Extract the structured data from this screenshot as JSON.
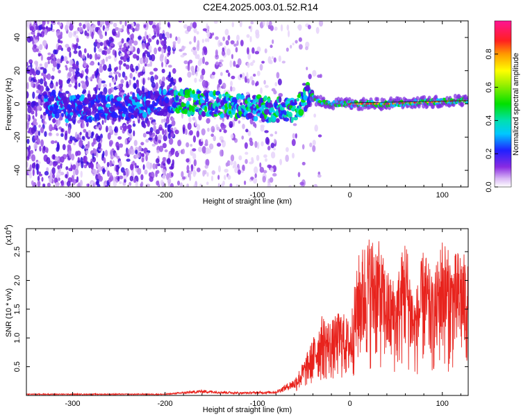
{
  "title": "C2E4.2025.003.01.52.R14",
  "colors": {
    "snr_line": "#e8231d",
    "frame": "#000000"
  },
  "chart_data": [
    {
      "type": "heatmap",
      "xlabel": "Height of straight line (km)",
      "ylabel": "Frequency (Hz)",
      "xlim": [
        -350,
        128
      ],
      "ylim": [
        -50,
        50
      ],
      "x_ticks": [
        -300,
        -200,
        -100,
        0,
        100
      ],
      "y_ticks": [
        -40,
        -20,
        0,
        20,
        40
      ],
      "colorbar": {
        "label": "Normalized spectral amplitude",
        "range": [
          0.0,
          1.0
        ],
        "ticks": [
          0.0,
          0.2,
          0.4,
          0.6,
          0.8
        ],
        "tick_labels": [
          "0.0",
          "0.2",
          "0.4",
          "0.6",
          "0.8"
        ]
      },
      "ridge_centerline": [
        [
          -310,
          -3
        ],
        [
          -250,
          -2
        ],
        [
          -190,
          2
        ],
        [
          -150,
          0
        ],
        [
          -110,
          -2
        ],
        [
          -75,
          -4
        ],
        [
          -55,
          -2
        ],
        [
          -45,
          6
        ],
        [
          -35,
          2
        ],
        [
          -20,
          0
        ],
        [
          0,
          0
        ],
        [
          40,
          0
        ],
        [
          80,
          1
        ],
        [
          128,
          2
        ]
      ]
    },
    {
      "type": "line",
      "xlabel": "Height of straight line (km)",
      "ylabel": "SNR (10 * v/v)",
      "y_exponent_label": "(x10",
      "y_exponent_power": "4",
      "y_exponent_close": ")",
      "xlim": [
        -350,
        128
      ],
      "ylim": [
        0,
        2.9
      ],
      "x_ticks": [
        -300,
        -200,
        -100,
        0,
        100
      ],
      "y_ticks": [
        0.5,
        1.0,
        1.5,
        2.0,
        2.5
      ],
      "y_tick_labels": [
        "0.5",
        "1.0",
        "1.5",
        "2.0",
        "2.5"
      ],
      "envelope": {
        "x": [
          -350,
          -200,
          -160,
          -120,
          -80,
          -60,
          -50,
          -40,
          -30,
          -20,
          -10,
          0,
          10,
          20,
          30,
          40,
          50,
          60,
          70,
          80,
          90,
          100,
          110,
          120,
          128
        ],
        "y": [
          0.03,
          0.03,
          0.1,
          0.06,
          0.08,
          0.3,
          0.6,
          1.0,
          1.4,
          1.3,
          1.5,
          1.3,
          2.5,
          2.8,
          2.75,
          2.2,
          2.0,
          2.85,
          1.7,
          2.6,
          2.0,
          2.8,
          2.4,
          2.6,
          2.3
        ]
      }
    }
  ]
}
